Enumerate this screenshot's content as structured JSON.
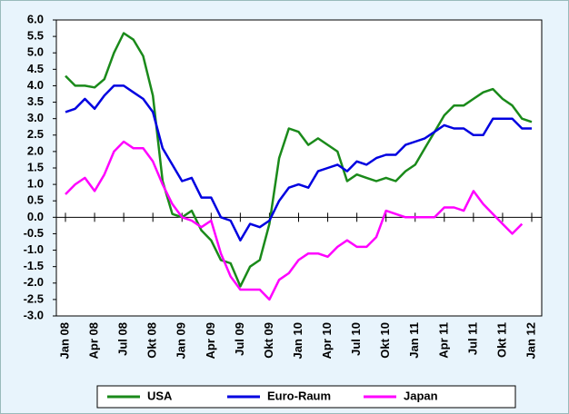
{
  "chart_data": {
    "type": "line",
    "categories": [
      "Jan 08",
      null,
      null,
      "Apr 08",
      null,
      null,
      "Jul 08",
      null,
      null,
      "Okt 08",
      null,
      null,
      "Jan 09",
      null,
      null,
      "Apr 09",
      null,
      null,
      "Jul 09",
      null,
      null,
      "Okt 09",
      null,
      null,
      "Jan 10",
      null,
      null,
      "Apr 10",
      null,
      null,
      "Jul 10",
      null,
      null,
      "Okt 10",
      null,
      null,
      "Jan 11",
      null,
      null,
      "Apr 11",
      null,
      null,
      "Jul 11",
      null,
      null,
      "Okt 11",
      null,
      null,
      "Jan 12"
    ],
    "series": [
      {
        "name": "USA",
        "color": "#1a8a1a",
        "values": [
          4.3,
          4.0,
          4.0,
          3.95,
          4.2,
          5.0,
          5.6,
          5.4,
          4.9,
          3.7,
          1.1,
          0.1,
          0.0,
          0.2,
          -0.4,
          -0.7,
          -1.3,
          -1.4,
          -2.1,
          -1.5,
          -1.3,
          -0.2,
          1.8,
          2.7,
          2.6,
          2.2,
          2.4,
          2.2,
          2.0,
          1.1,
          1.3,
          1.2,
          1.1,
          1.2,
          1.1,
          1.4,
          1.6,
          2.1,
          2.6,
          3.1,
          3.4,
          3.4,
          3.6,
          3.8,
          3.9,
          3.6,
          3.4,
          3.0,
          2.9
        ]
      },
      {
        "name": "Euro-Raum",
        "color": "#0000e0",
        "values": [
          3.2,
          3.3,
          3.6,
          3.3,
          3.7,
          4.0,
          4.0,
          3.8,
          3.6,
          3.2,
          2.1,
          1.6,
          1.1,
          1.2,
          0.6,
          0.6,
          0.0,
          -0.1,
          -0.7,
          -0.2,
          -0.3,
          -0.1,
          0.5,
          0.9,
          1.0,
          0.9,
          1.4,
          1.5,
          1.6,
          1.4,
          1.7,
          1.6,
          1.8,
          1.9,
          1.9,
          2.2,
          2.3,
          2.4,
          2.6,
          2.8,
          2.7,
          2.7,
          2.5,
          2.5,
          3.0,
          3.0,
          3.0,
          2.7,
          2.7
        ]
      },
      {
        "name": "Japan",
        "color": "#ff00ff",
        "values": [
          0.7,
          1.0,
          1.2,
          0.8,
          1.3,
          2.0,
          2.3,
          2.1,
          2.1,
          1.7,
          1.0,
          0.4,
          0.0,
          -0.1,
          -0.3,
          -0.1,
          -1.1,
          -1.8,
          -2.2,
          -2.2,
          -2.2,
          -2.5,
          -1.9,
          -1.7,
          -1.3,
          -1.1,
          -1.1,
          -1.2,
          -0.9,
          -0.7,
          -0.9,
          -0.9,
          -0.6,
          0.2,
          0.1,
          0.0,
          0.0,
          0.0,
          0.0,
          0.3,
          0.3,
          0.2,
          0.8,
          0.4,
          0.1,
          -0.2,
          -0.5,
          -0.2,
          null
        ]
      }
    ],
    "ylim": [
      -3,
      6
    ],
    "yticks": [
      {
        "value": -3,
        "label": "-3.0"
      },
      -2.5,
      {
        "value": -2,
        "label": "-2.0"
      },
      -1.5,
      {
        "value": -1,
        "label": "-1.0"
      },
      -0.5,
      {
        "value": 0,
        "label": "0.0"
      },
      0.5,
      {
        "value": 1,
        "label": "1.0"
      },
      1.5,
      {
        "value": 2,
        "label": "2.0"
      },
      2.5,
      {
        "value": 3,
        "label": "3.0"
      },
      3.5,
      {
        "value": 4,
        "label": "4.0"
      },
      4.5,
      {
        "value": 5,
        "label": "5.0"
      },
      5.5,
      {
        "value": 6,
        "label": "6.0"
      }
    ],
    "legend": "bottom"
  }
}
